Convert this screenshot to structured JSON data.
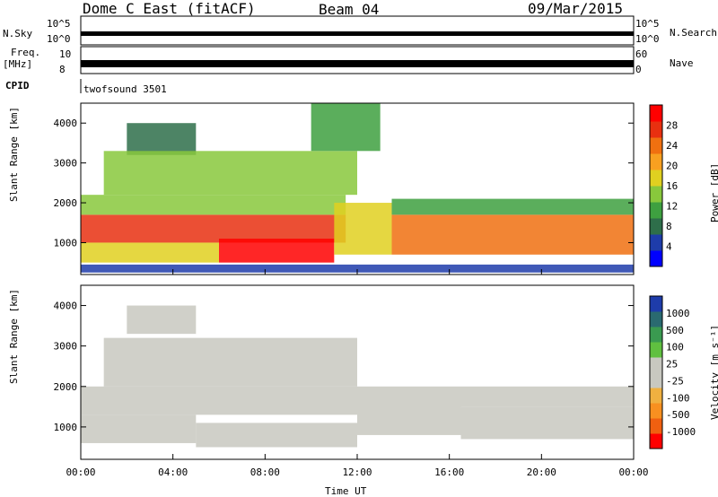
{
  "header": {
    "title": "Dome C East (fitACF)",
    "beam": "Beam 04",
    "date": "09/Mar/2015"
  },
  "nsky_panel": {
    "label": "N.Sky",
    "right_label": "N.Search",
    "left_ticks": [
      "10^5",
      "10^0"
    ],
    "right_ticks": [
      "10^5",
      "10^0"
    ]
  },
  "freq_panel": {
    "label_line1": "Freq.",
    "label_line2": "[MHz]",
    "right_label": "Nave",
    "left_ticks": [
      "10",
      "8"
    ],
    "right_ticks": [
      "60",
      "0"
    ]
  },
  "cpid": {
    "label": "CPID",
    "value": "twofsound 3501"
  },
  "chart_data": [
    {
      "type": "heatmap",
      "name": "power",
      "ylabel": "Slant Range [km]",
      "ylim": [
        200,
        4500
      ],
      "yticks": [
        1000,
        2000,
        3000,
        4000
      ],
      "xlim": [
        0,
        24
      ],
      "colorbar": {
        "label": "Power [dB]",
        "ticks": [
          "28",
          "24",
          "20",
          "16",
          "12",
          "8",
          "4"
        ],
        "colors": [
          "#0000ff",
          "#1e3caa",
          "#2e6e4a",
          "#3ea040",
          "#88c83c",
          "#e0d020",
          "#f8a020",
          "#f07010",
          "#e83010",
          "#ff0000"
        ]
      },
      "colorbar_range": [
        0,
        32
      ],
      "bands": [
        {
          "t0": 0.0,
          "t1": 11.5,
          "r0": 1000,
          "r1": 1700,
          "v": 27
        },
        {
          "t0": 0.0,
          "t1": 11.5,
          "r0": 1700,
          "r1": 2200,
          "v": 13
        },
        {
          "t0": 0.0,
          "t1": 6.0,
          "r0": 500,
          "r1": 1000,
          "v": 16
        },
        {
          "t0": 6.0,
          "t1": 11.0,
          "r0": 500,
          "r1": 1100,
          "v": 29
        },
        {
          "t0": 11.0,
          "t1": 13.5,
          "r0": 700,
          "r1": 2000,
          "v": 18
        },
        {
          "t0": 13.5,
          "t1": 24.0,
          "r0": 700,
          "r1": 1700,
          "v": 24
        },
        {
          "t0": 13.5,
          "t1": 24.0,
          "r0": 1700,
          "r1": 2100,
          "v": 11
        },
        {
          "t0": 2.0,
          "t1": 5.0,
          "r0": 3200,
          "r1": 4000,
          "v": 7
        },
        {
          "t0": 1.0,
          "t1": 12.0,
          "r0": 2200,
          "r1": 3300,
          "v": 15
        },
        {
          "t0": 10.0,
          "t1": 13.0,
          "r0": 3300,
          "r1": 4500,
          "v": 12
        },
        {
          "t0": 0.0,
          "t1": 24.0,
          "r0": 250,
          "r1": 450,
          "v": 5
        }
      ]
    },
    {
      "type": "heatmap",
      "name": "velocity",
      "ylabel": "Slant Range [km]",
      "xlabel": "Time UT",
      "ylim": [
        200,
        4500
      ],
      "yticks": [
        1000,
        2000,
        3000,
        4000
      ],
      "xlim": [
        0,
        24
      ],
      "xticks": [
        "00:00",
        "04:00",
        "08:00",
        "12:00",
        "16:00",
        "20:00",
        "00:00"
      ],
      "colorbar": {
        "label": "Velocity [m s⁻¹]",
        "ticks": [
          "1000",
          "500",
          "100",
          "25",
          "-25",
          "-100",
          "-500",
          "-1000"
        ],
        "colors": [
          "#ff0000",
          "#f06010",
          "#f89020",
          "#f0b040",
          "#c8c8c0",
          "#c8c8c0",
          "#60c040",
          "#3a9a50",
          "#2a6a70",
          "#1e3caa"
        ]
      },
      "colorbar_range": [
        -1200,
        1200
      ],
      "bands": [
        {
          "t0": 0.0,
          "t1": 12.0,
          "r0": 1300,
          "r1": 2000,
          "v": 0
        },
        {
          "t0": 0.0,
          "t1": 5.0,
          "r0": 600,
          "r1": 1300,
          "v": 150
        },
        {
          "t0": 5.0,
          "t1": 12.0,
          "r0": 500,
          "r1": 1100,
          "v": -150
        },
        {
          "t0": 12.0,
          "t1": 16.5,
          "r0": 800,
          "r1": 2000,
          "v": -200
        },
        {
          "t0": 16.5,
          "t1": 24.0,
          "r0": 700,
          "r1": 1500,
          "v": 200
        },
        {
          "t0": 16.5,
          "t1": 24.0,
          "r0": 1500,
          "r1": 2000,
          "v": 0
        },
        {
          "t0": 1.0,
          "t1": 12.0,
          "r0": 2000,
          "r1": 3200,
          "v": 0
        },
        {
          "t0": 2.0,
          "t1": 5.0,
          "r0": 3300,
          "r1": 4000,
          "v": 0
        }
      ]
    }
  ]
}
